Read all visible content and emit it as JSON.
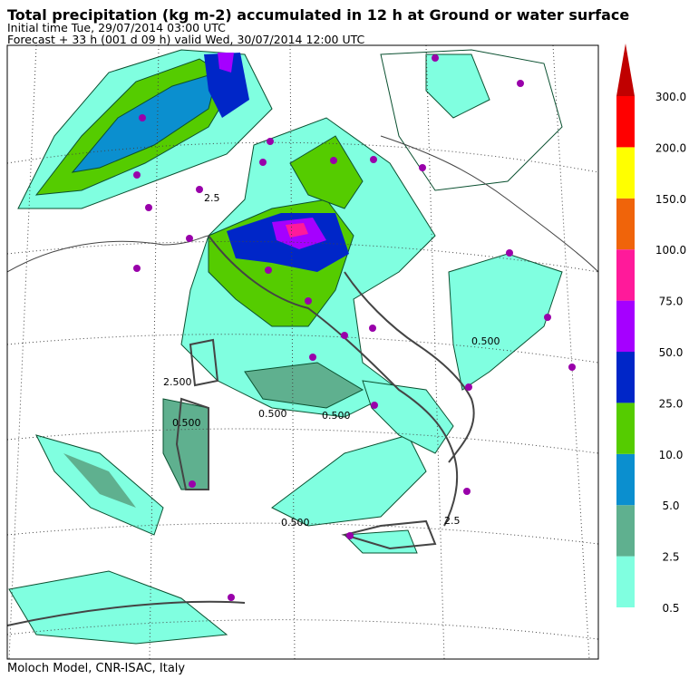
{
  "header": {
    "title": "Total precipitation (kg m-2) accumulated in  12 h at Ground or water surface",
    "line1": "Initial time  Tue, 29/07/2014  03:00 UTC",
    "line2": "Forecast  +  33 h  (001 d 09 h)  valid Wed, 30/07/2014 12:00 UTC"
  },
  "colorbar": {
    "levels": [
      {
        "label": "0.5",
        "color": "#80ffe0"
      },
      {
        "label": "2.5",
        "color": "#5fb08f"
      },
      {
        "label": "5.0",
        "color": "#0b8fcf"
      },
      {
        "label": "10.0",
        "color": "#55cc00"
      },
      {
        "label": "25.0",
        "color": "#0026c8"
      },
      {
        "label": "50.0",
        "color": "#a500ff"
      },
      {
        "label": "75.0",
        "color": "#ff1a9a"
      },
      {
        "label": "100.0",
        "color": "#f0640a"
      },
      {
        "label": "150.0",
        "color": "#ffff00"
      },
      {
        "label": "200.0",
        "color": "#ff0000"
      },
      {
        "label": "300.0",
        "color": "#c00000"
      }
    ]
  },
  "contour_labels": [
    "2.500",
    "0.500",
    "0.500",
    "2.5",
    "0.500",
    "0.500",
    "2.5",
    "0.500"
  ],
  "footer": "Moloch Model, CNR-ISAC, Italy"
}
